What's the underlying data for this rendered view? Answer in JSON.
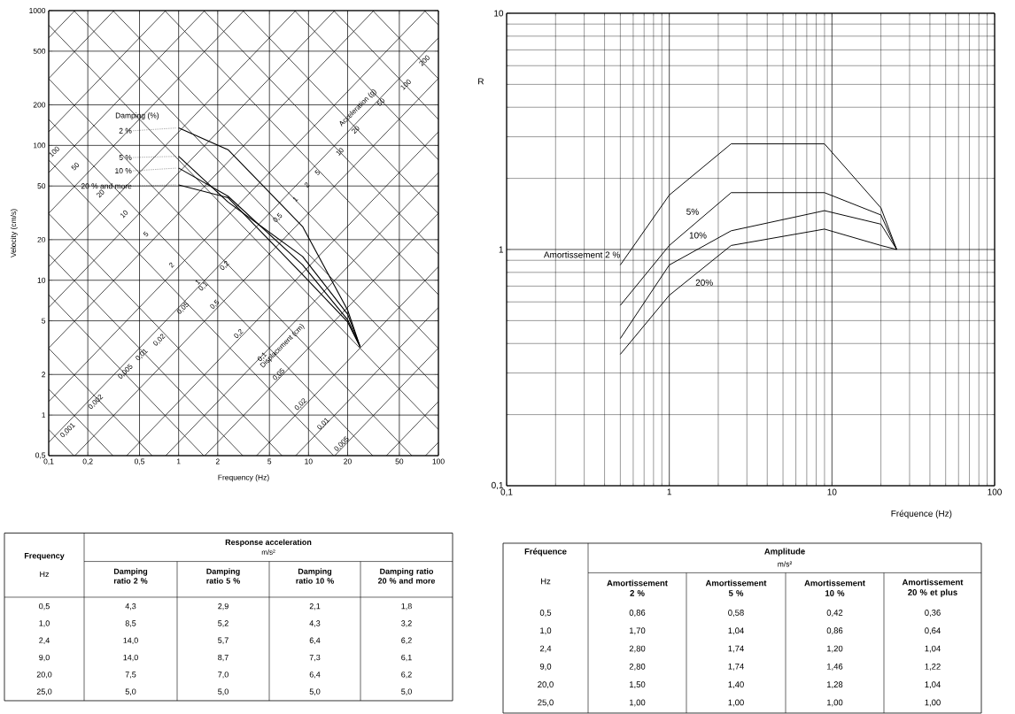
{
  "chart_data": [
    {
      "type": "line",
      "xlabel": "Frequency (Hz)",
      "ylabel": "Velocity (cm/s)",
      "legend_title": "Damping (%)",
      "log": "xy",
      "grid": true,
      "xlim": [
        0.1,
        100
      ],
      "ylim": [
        0.5,
        1000
      ],
      "xticks": [
        {
          "value": 0.1,
          "label": "0,1"
        },
        {
          "value": 0.2,
          "label": "0,2"
        },
        {
          "value": 0.5,
          "label": "0,5"
        },
        1,
        2,
        5,
        10,
        20,
        50,
        100
      ],
      "yticks": [
        {
          "value": 0.5,
          "label": "0,5"
        },
        1,
        2,
        5,
        10,
        20,
        50,
        100,
        200,
        500,
        1000
      ],
      "x": [
        1,
        2.4,
        9,
        20,
        25
      ],
      "series": [
        {
          "name": "2 %",
          "color": "#000000",
          "values": [
            135,
            93,
            25,
            6.0,
            3.2
          ]
        },
        {
          "name": "5 %",
          "color": "#000000",
          "values": [
            83,
            38,
            15,
            5.6,
            3.2
          ]
        },
        {
          "name": "10 %",
          "color": "#000000",
          "values": [
            68,
            42,
            13,
            5.1,
            3.2
          ]
        },
        {
          "name": "20 % and more",
          "color": "#000000",
          "values": [
            51,
            41,
            11,
            4.9,
            3.2
          ]
        },
        {
          "color": "#000000",
          "x": [
            79.6,
            100
          ],
          "values": [
            0.5,
            0.628
          ]
        },
        {
          "color": "#000000",
          "x": [
            39.8,
            100
          ],
          "values": [
            0.5,
            1.26
          ]
        },
        {
          "color": "#000000",
          "x": [
            15.9,
            100
          ],
          "values": [
            0.5,
            3.14
          ]
        },
        {
          "color": "#000000",
          "x": [
            7.96,
            100
          ],
          "values": [
            0.5,
            6.28
          ]
        },
        {
          "color": "#000000",
          "x": [
            3.98,
            100
          ],
          "values": [
            0.5,
            12.6
          ]
        },
        {
          "color": "#000000",
          "x": [
            1.59,
            100
          ],
          "values": [
            0.5,
            31.4
          ]
        },
        {
          "color": "#000000",
          "x": [
            0.796,
            100
          ],
          "values": [
            0.5,
            62.8
          ]
        },
        {
          "color": "#000000",
          "x": [
            0.398,
            100
          ],
          "values": [
            0.5,
            126
          ]
        },
        {
          "color": "#000000",
          "x": [
            0.159,
            100
          ],
          "values": [
            0.5,
            314
          ]
        },
        {
          "color": "#000000",
          "x": [
            0.1,
            100
          ],
          "values": [
            0.628,
            628
          ]
        },
        {
          "color": "#000000",
          "x": [
            0.1,
            79.6
          ],
          "values": [
            1.26,
            1000
          ]
        },
        {
          "color": "#000000",
          "x": [
            0.1,
            31.8
          ],
          "values": [
            3.14,
            1000
          ]
        },
        {
          "color": "#000000",
          "x": [
            0.1,
            15.9
          ],
          "values": [
            6.28,
            1000
          ]
        },
        {
          "color": "#000000",
          "x": [
            0.1,
            7.96
          ],
          "values": [
            12.6,
            1000
          ]
        },
        {
          "color": "#000000",
          "x": [
            0.1,
            3.18
          ],
          "values": [
            31.4,
            1000
          ]
        },
        {
          "color": "#000000",
          "x": [
            0.1,
            1.59
          ],
          "values": [
            62.8,
            1000
          ]
        },
        {
          "color": "#000000",
          "x": [
            0.1,
            0.796
          ],
          "values": [
            126,
            1000
          ]
        },
        {
          "color": "#000000",
          "x": [
            0.1,
            0.318
          ],
          "values": [
            314,
            1000
          ]
        },
        {
          "color": "#000000",
          "x": [
            0.1,
            0.159
          ],
          "values": [
            628,
            1000
          ]
        },
        {
          "color": "#000000",
          "x": [
            0.1,
            0.156
          ],
          "values": [
            0.781,
            0.5
          ]
        },
        {
          "color": "#000000",
          "x": [
            0.1,
            0.312
          ],
          "values": [
            1.56,
            0.5
          ]
        },
        {
          "color": "#000000",
          "x": [
            0.1,
            0.625
          ],
          "values": [
            3.12,
            0.5
          ]
        },
        {
          "color": "#000000",
          "x": [
            0.1,
            1.56
          ],
          "values": [
            7.81,
            0.5
          ]
        },
        {
          "color": "#000000",
          "x": [
            0.1,
            3.12
          ],
          "values": [
            15.6,
            0.5
          ]
        },
        {
          "color": "#000000",
          "x": [
            0.1,
            6.25
          ],
          "values": [
            31.2,
            0.5
          ]
        },
        {
          "color": "#000000",
          "x": [
            0.1,
            15.6
          ],
          "values": [
            78.1,
            0.5
          ]
        },
        {
          "color": "#000000",
          "x": [
            0.1,
            31.2
          ],
          "values": [
            156,
            0.5
          ]
        },
        {
          "color": "#000000",
          "x": [
            0.1,
            62.5
          ],
          "values": [
            312,
            0.5
          ]
        },
        {
          "color": "#000000",
          "x": [
            0.1,
            100
          ],
          "values": [
            781,
            0.781
          ]
        },
        {
          "color": "#000000",
          "x": [
            0.156,
            100
          ],
          "values": [
            1000,
            1.56
          ]
        },
        {
          "color": "#000000",
          "x": [
            0.312,
            100
          ],
          "values": [
            1000,
            3.12
          ]
        },
        {
          "color": "#000000",
          "x": [
            0.781,
            100
          ],
          "values": [
            1000,
            7.81
          ]
        },
        {
          "color": "#000000",
          "x": [
            1.56,
            100
          ],
          "values": [
            1000,
            15.6
          ]
        },
        {
          "color": "#000000",
          "x": [
            3.12,
            100
          ],
          "values": [
            1000,
            31.2
          ]
        },
        {
          "color": "#000000",
          "x": [
            7.81,
            100
          ],
          "values": [
            1000,
            78.1
          ]
        },
        {
          "color": "#000000",
          "x": [
            15.6,
            100
          ],
          "values": [
            1000,
            156
          ]
        },
        {
          "color": "#000000",
          "x": [
            31.2,
            100
          ],
          "values": [
            1000,
            312
          ]
        },
        {
          "color": "#000000",
          "x": [
            78.1,
            100
          ],
          "values": [
            1000,
            781
          ]
        }
      ],
      "annotations": [
        "100",
        "50",
        "20",
        "10",
        "5",
        "2",
        "1",
        "0,5",
        "0,2",
        "0,1",
        "0,05",
        "0,02",
        "0,01",
        "0,005",
        "Displacement (cm)",
        "0,001",
        "0,002",
        "0,005",
        "0,01",
        "0,02",
        "0,05",
        "0,1",
        "0,2",
        "0,5",
        "1",
        "2",
        "5",
        "10",
        "20",
        "Acceleration (g)",
        "50",
        "100",
        "200"
      ]
    },
    {
      "type": "line",
      "xlabel": "Fréquence (Hz)",
      "ylabel": "R",
      "log": "xy",
      "grid": true,
      "xlim": [
        0.1,
        100
      ],
      "ylim": [
        0.1,
        10
      ],
      "xticks": [
        {
          "value": 0.1,
          "label": "0,1"
        },
        1,
        10,
        100
      ],
      "yticks": [
        {
          "value": 0.1,
          "label": "0,1"
        },
        1,
        10
      ],
      "x": [
        0.5,
        1,
        2.4,
        9,
        20,
        25
      ],
      "series": [
        {
          "name": "Amortissement 2 %",
          "color": "#000000",
          "values": [
            0.86,
            1.7,
            2.8,
            2.8,
            1.5,
            1.0
          ]
        },
        {
          "name": "5%",
          "color": "#000000",
          "values": [
            0.58,
            1.04,
            1.74,
            1.74,
            1.4,
            1.0
          ]
        },
        {
          "name": "10%",
          "color": "#000000",
          "values": [
            0.42,
            0.86,
            1.2,
            1.46,
            1.28,
            1.0
          ]
        },
        {
          "name": "20%",
          "color": "#000000",
          "values": [
            0.36,
            0.64,
            1.04,
            1.22,
            1.04,
            1.0
          ]
        }
      ]
    },
    {
      "type": "other",
      "title": "Response acceleration",
      "subtitle": "m/s²",
      "xlabel": "Frequency",
      "annotations": [
        "Hz"
      ],
      "categories": [
        "0,5",
        "1,0",
        "2,4",
        "9,0",
        "20,0",
        "25,0"
      ],
      "series": [
        {
          "name": "Damping ratio 2 %",
          "values": [
            4.3,
            8.5,
            14.0,
            14.0,
            7.5,
            5.0
          ],
          "value_labels": [
            "4,3",
            "8,5",
            "14,0",
            "14,0",
            "7,5",
            "5,0"
          ]
        },
        {
          "name": "Damping ratio 5 %",
          "values": [
            2.9,
            5.2,
            5.7,
            8.7,
            7.0,
            5.0
          ],
          "value_labels": [
            "2,9",
            "5,2",
            "5,7",
            "8,7",
            "7,0",
            "5,0"
          ]
        },
        {
          "name": "Damping ratio 10 %",
          "values": [
            2.1,
            4.3,
            6.4,
            7.3,
            6.4,
            5.0
          ],
          "value_labels": [
            "2,1",
            "4,3",
            "6,4",
            "7,3",
            "6,4",
            "5,0"
          ]
        },
        {
          "name": "Damping ratio 20 % and more",
          "values": [
            1.8,
            3.2,
            6.2,
            6.1,
            6.2,
            5.0
          ],
          "value_labels": [
            "1,8",
            "3,2",
            "6,2",
            "6,1",
            "6,2",
            "5,0"
          ]
        }
      ]
    },
    {
      "type": "other",
      "title": "Amplitude",
      "subtitle": "m/s²",
      "xlabel": "Fréquence",
      "annotations": [
        "Hz"
      ],
      "categories": [
        "0,5",
        "1,0",
        "2,4",
        "9,0",
        "20,0",
        "25,0"
      ],
      "series": [
        {
          "name": "Amortissement 2 %",
          "values": [
            0.86,
            1.7,
            2.8,
            2.8,
            1.5,
            1.0
          ],
          "value_labels": [
            "0,86",
            "1,70",
            "2,80",
            "2,80",
            "1,50",
            "1,00"
          ]
        },
        {
          "name": "Amortissement 5 %",
          "values": [
            0.58,
            1.04,
            1.74,
            1.74,
            1.4,
            1.0
          ],
          "value_labels": [
            "0,58",
            "1,04",
            "1,74",
            "1,74",
            "1,40",
            "1,00"
          ]
        },
        {
          "name": "Amortissement 10 %",
          "values": [
            0.42,
            0.86,
            1.2,
            1.46,
            1.28,
            1.0
          ],
          "value_labels": [
            "0,42",
            "0,86",
            "1,20",
            "1,46",
            "1,28",
            "1,00"
          ]
        },
        {
          "name": "Amortissement 20 % et plus",
          "values": [
            0.36,
            0.64,
            1.04,
            1.22,
            1.04,
            1.0
          ],
          "value_labels": [
            "0,36",
            "0,64",
            "1,04",
            "1,22",
            "1,04",
            "1,00"
          ]
        }
      ]
    }
  ]
}
